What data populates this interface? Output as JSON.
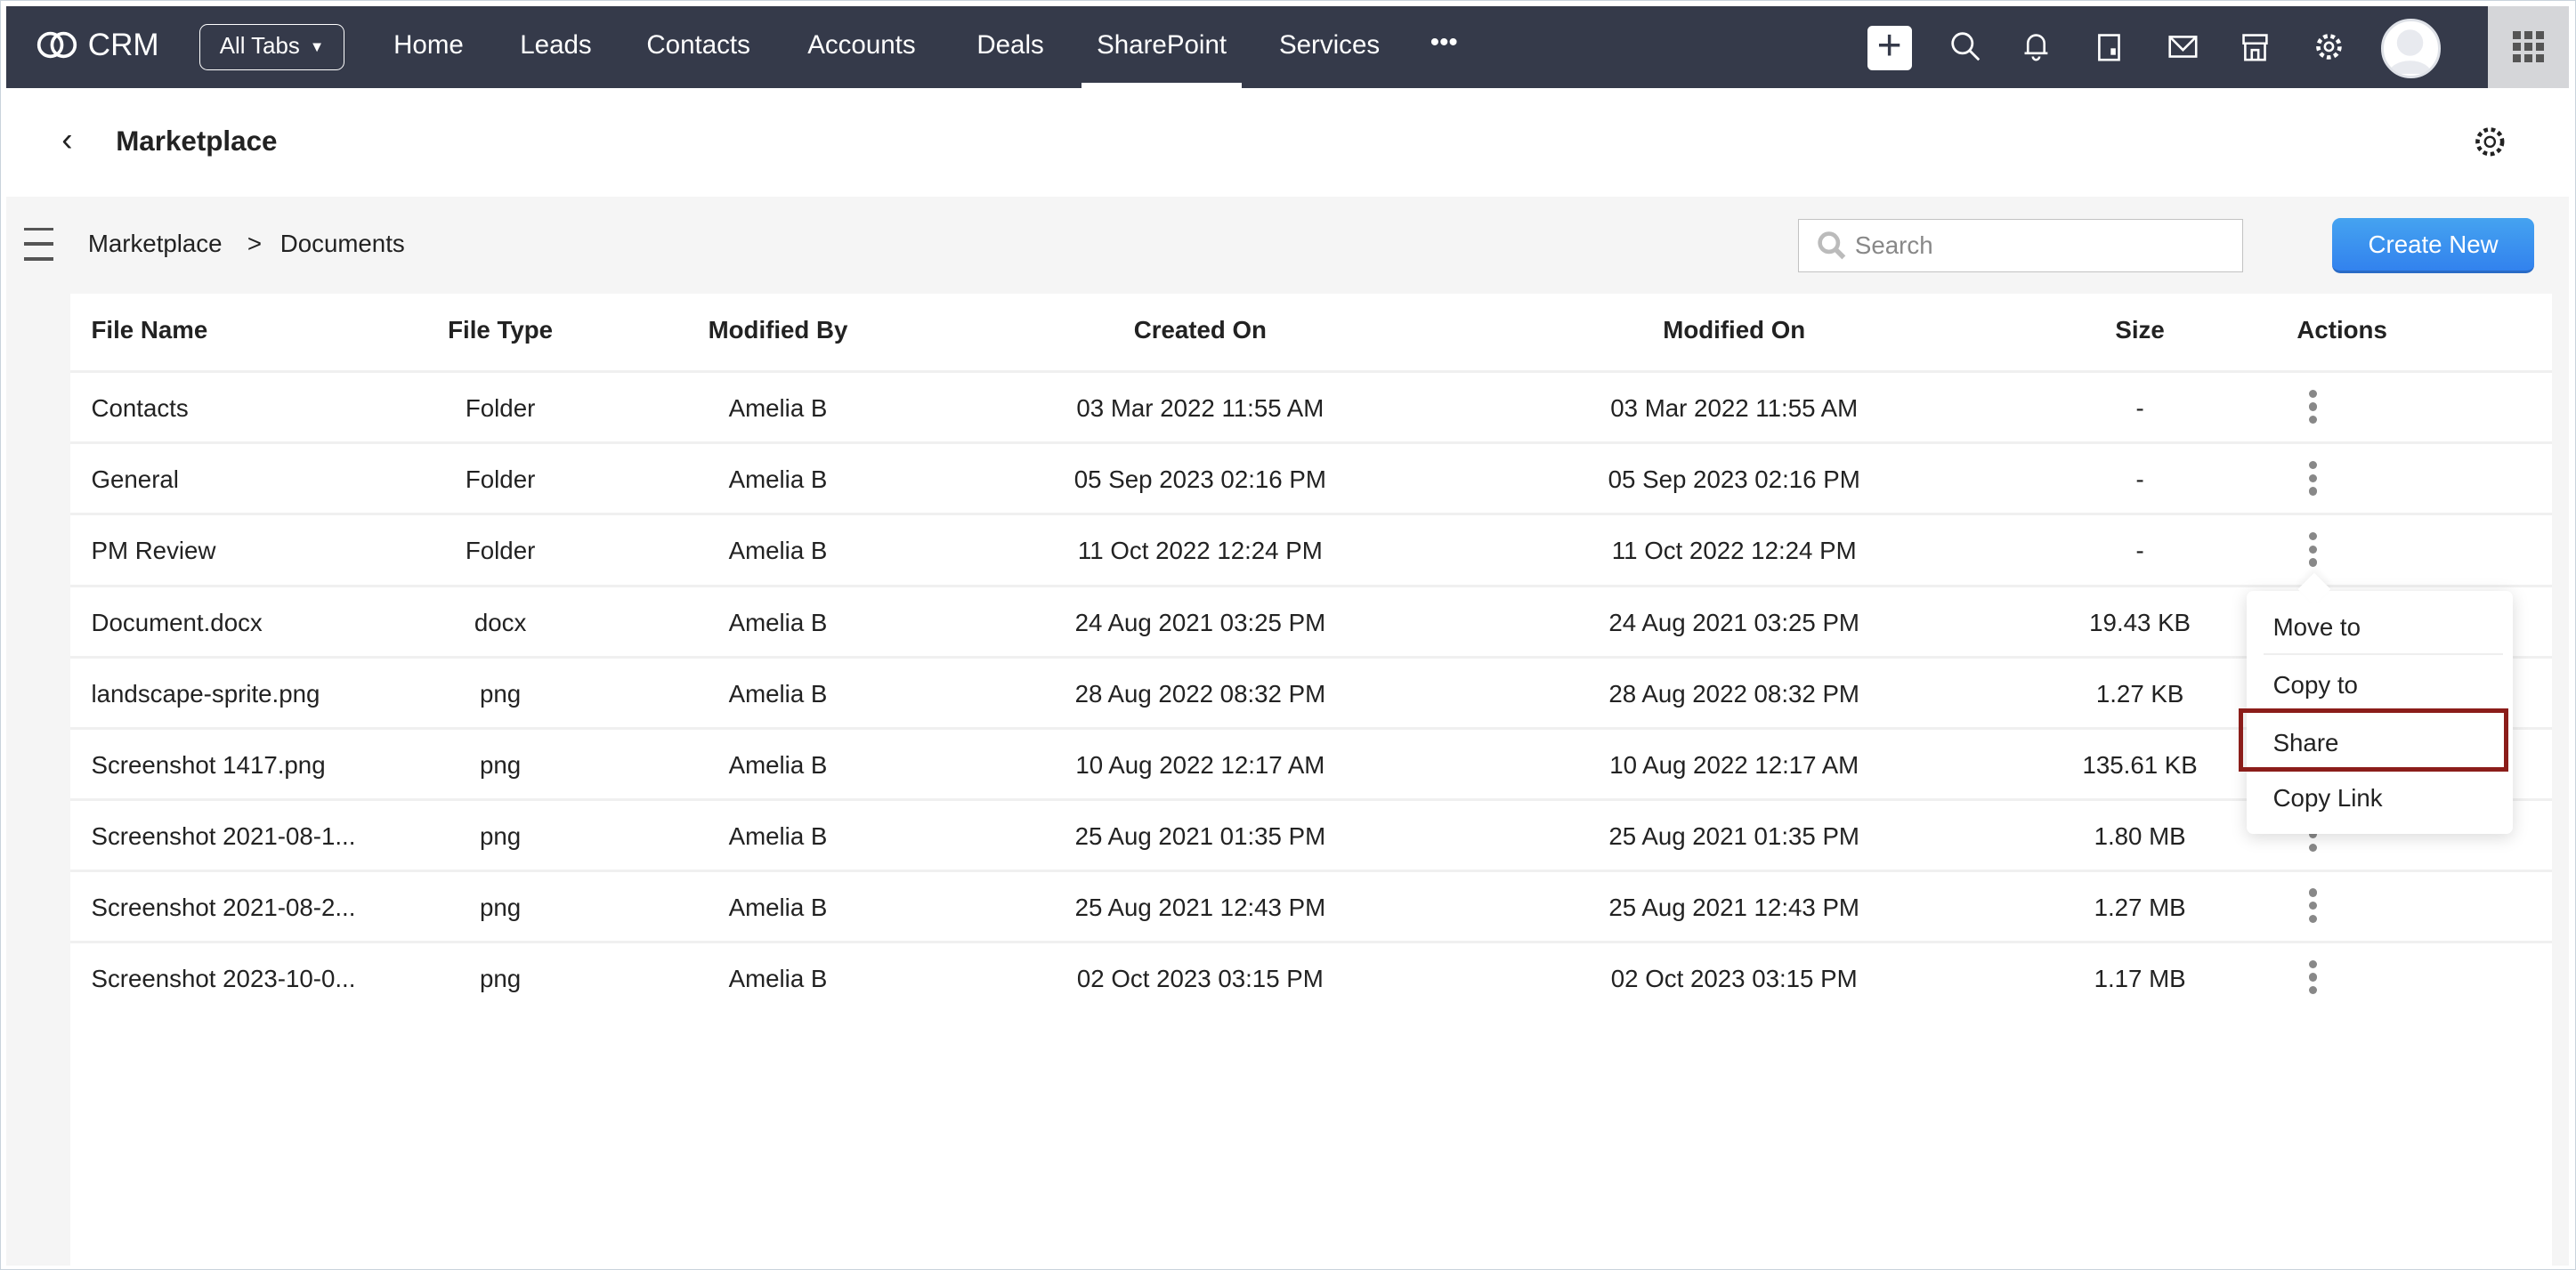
{
  "topbar": {
    "app_name": "CRM",
    "all_tabs": "All Tabs",
    "tabs": [
      "Home",
      "Leads",
      "Contacts",
      "Accounts",
      "Deals",
      "SharePoint",
      "Services"
    ],
    "active_tab": "SharePoint",
    "more": "•••"
  },
  "header": {
    "title": "Marketplace"
  },
  "breadcrumb": {
    "root": "Marketplace",
    "sep": ">",
    "current": "Documents"
  },
  "search": {
    "placeholder": "Search"
  },
  "create_new": "Create New",
  "table": {
    "columns": [
      "File Name",
      "File Type",
      "Modified By",
      "Created On",
      "Modified On",
      "Size",
      "Actions"
    ],
    "rows": [
      [
        "Contacts",
        "Folder",
        "Amelia B",
        "03 Mar 2022 11:55 AM",
        "03 Mar 2022 11:55 AM",
        "-"
      ],
      [
        "General",
        "Folder",
        "Amelia B",
        "05 Sep 2023 02:16 PM",
        "05 Sep 2023 02:16 PM",
        "-"
      ],
      [
        "PM Review",
        "Folder",
        "Amelia B",
        "11 Oct 2022 12:24 PM",
        "11 Oct 2022 12:24 PM",
        "-"
      ],
      [
        "Document.docx",
        "docx",
        "Amelia B",
        "24 Aug 2021 03:25 PM",
        "24 Aug 2021 03:25 PM",
        "19.43 KB"
      ],
      [
        "landscape-sprite.png",
        "png",
        "Amelia B",
        "28 Aug 2022 08:32 PM",
        "28 Aug 2022 08:32 PM",
        "1.27 KB"
      ],
      [
        "Screenshot 1417.png",
        "png",
        "Amelia B",
        "10 Aug 2022 12:17 AM",
        "10 Aug 2022 12:17 AM",
        "135.61 KB"
      ],
      [
        "Screenshot 2021-08-1...",
        "png",
        "Amelia B",
        "25 Aug 2021 01:35 PM",
        "25 Aug 2021 01:35 PM",
        "1.80 MB"
      ],
      [
        "Screenshot 2021-08-2...",
        "png",
        "Amelia B",
        "25 Aug 2021 12:43 PM",
        "25 Aug 2021 12:43 PM",
        "1.27 MB"
      ],
      [
        "Screenshot 2023-10-0...",
        "png",
        "Amelia B",
        "02 Oct 2023 03:15 PM",
        "02 Oct 2023 03:15 PM",
        "1.17 MB"
      ]
    ]
  },
  "action_menu": {
    "items": [
      "Move to",
      "Copy to",
      "Share",
      "Copy Link"
    ],
    "highlighted": "Share"
  },
  "colors": {
    "topbar": "#353a4a",
    "primary_button": "#3a8ef0",
    "highlight_border": "#8b1d1a"
  }
}
